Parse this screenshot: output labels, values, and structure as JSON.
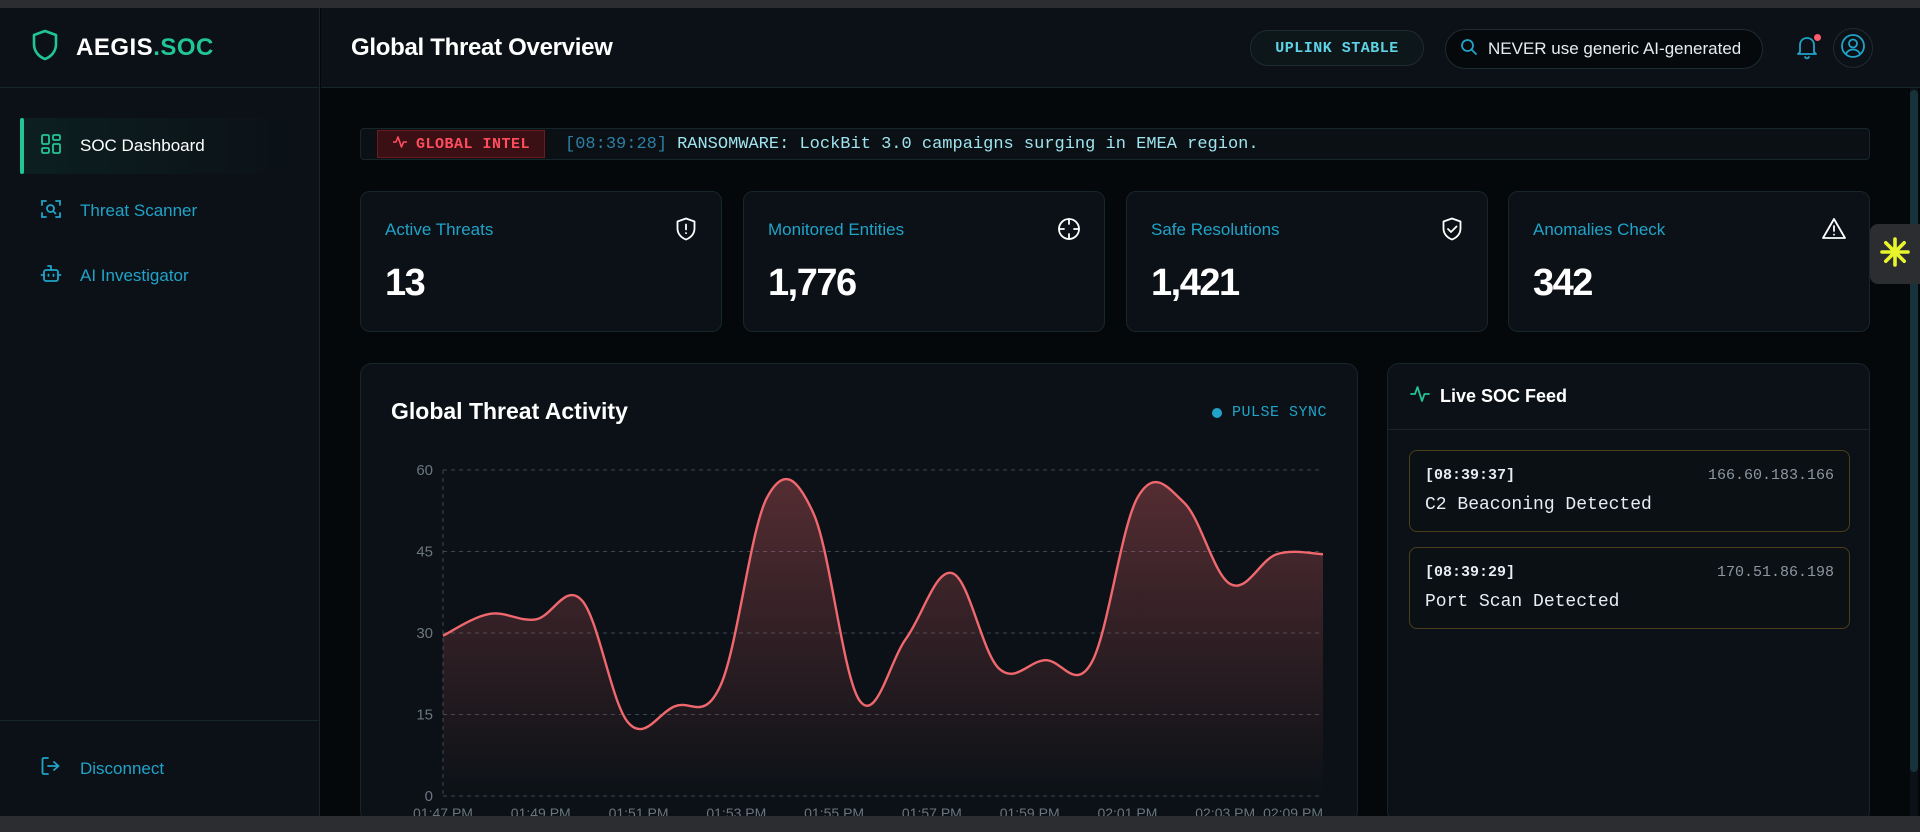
{
  "brand": {
    "name": "AEGIS",
    "accent": ".SOC"
  },
  "sidebar": {
    "items": [
      {
        "label": "SOC Dashboard",
        "icon": "grid-icon",
        "active": true
      },
      {
        "label": "Threat Scanner",
        "icon": "scan-icon",
        "active": false
      },
      {
        "label": "AI Investigator",
        "icon": "bot-icon",
        "active": false
      }
    ],
    "footer": {
      "label": "Disconnect",
      "icon": "logout-icon"
    }
  },
  "header": {
    "title": "Global Threat Overview",
    "status": "UPLINK STABLE",
    "search_value": "NEVER use generic AI-generated",
    "notification_icon": "bell-icon",
    "user_icon": "user-circle-icon"
  },
  "ticker": {
    "badge": "GLOBAL INTEL",
    "time": "[08:39:28]",
    "message": "RANSOMWARE: LockBit 3.0 campaigns surging in EMEA region."
  },
  "stats": [
    {
      "label": "Active Threats",
      "value": "13",
      "icon": "shield-alert-icon"
    },
    {
      "label": "Monitored Entities",
      "value": "1,776",
      "icon": "crosshair-icon"
    },
    {
      "label": "Safe Resolutions",
      "value": "1,421",
      "icon": "shield-check-icon"
    },
    {
      "label": "Anomalies Check",
      "value": "342",
      "icon": "warning-icon"
    }
  ],
  "chart": {
    "title": "Global Threat Activity",
    "pulse_label": "PULSE SYNC"
  },
  "chart_data": {
    "type": "area",
    "title": "Global Threat Activity",
    "xlabel": "",
    "ylabel": "",
    "ylim": [
      0,
      60
    ],
    "yticks": [
      0,
      15,
      30,
      45,
      60
    ],
    "xtick_labels": [
      "01:47 PM",
      "01:49 PM",
      "01:51 PM",
      "01:53 PM",
      "01:55 PM",
      "01:57 PM",
      "01:59 PM",
      "02:01 PM",
      "02:03 PM",
      "02:09 PM"
    ],
    "grid": true,
    "series": [
      {
        "values": [
          29.5,
          33.5,
          32.5,
          36,
          13.5,
          16.5,
          20.5,
          55,
          52,
          17.5,
          29,
          41,
          23.5,
          25,
          24.5,
          55,
          54,
          39,
          44.5,
          44.5
        ]
      }
    ],
    "colors": {
      "line": "#f0686e",
      "fill": "#f0686e"
    }
  },
  "feed": {
    "title": "Live SOC Feed",
    "icon": "activity-icon",
    "items": [
      {
        "time": "[08:39:37]",
        "ip": "166.60.183.166",
        "event": "C2 Beaconing Detected"
      },
      {
        "time": "[08:39:29]",
        "ip": "170.51.86.198",
        "event": "Port Scan Detected"
      }
    ]
  }
}
